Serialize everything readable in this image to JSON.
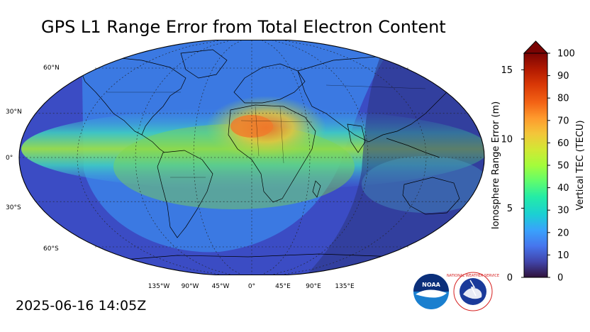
{
  "header": {
    "title": "GPS L1 Range Error from Total Electron Content"
  },
  "footer": {
    "timestamp": "2025-06-16 14:05Z"
  },
  "map": {
    "projection": "robinson",
    "latitude_labels": [
      "60°N",
      "30°N",
      "0°",
      "30°S",
      "60°S"
    ],
    "longitude_labels": [
      "135°W",
      "90°W",
      "45°W",
      "0°",
      "45°E",
      "90°E",
      "135°E"
    ],
    "colors": {
      "ocean_base": "#3b4cc4",
      "night_shade": "#2a2f72",
      "equatorial_band": "#7fd84c",
      "hotspot": "#f07a2a",
      "coastline": "#000000",
      "gridline": "#222222"
    }
  },
  "colorbar": {
    "left_axis_title": "Ionosphere Range Error (m)",
    "right_axis_title": "Vertical TEC (TECU)",
    "left_ticks": [
      "0",
      "5",
      "10",
      "15"
    ],
    "right_ticks": [
      "0",
      "10",
      "20",
      "30",
      "40",
      "50",
      "60",
      "70",
      "80",
      "90",
      "100"
    ],
    "tec_range": [
      0,
      100
    ],
    "range_error_max_m": 16.2,
    "extend": "max",
    "colormap": "turbo"
  },
  "logos": {
    "noaa_text": "NOAA",
    "nws_text": "NATIONAL WEATHER SERVICE"
  }
}
